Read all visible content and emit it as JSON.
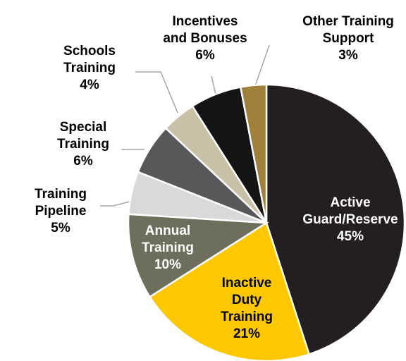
{
  "chart_data": {
    "type": "pie",
    "categories": [
      "Active\nGuard/Reserve",
      "Inactive\nDuty\nTraining",
      "Annual\nTraining",
      "Training\nPipeline",
      "Special\nTraining",
      "Schools\nTraining",
      "Incentives\nand Bonuses",
      "Other Training\nSupport"
    ],
    "values": [
      45,
      21,
      10,
      5,
      6,
      4,
      6,
      3
    ],
    "value_labels": [
      "45%",
      "21%",
      "10%",
      "5%",
      "6%",
      "4%",
      "6%",
      "3%"
    ],
    "colors": [
      "#231f20",
      "#fdc800",
      "#6d6e5c",
      "#d9d9d9",
      "#58585a",
      "#c9c0a8",
      "#141414",
      "#a0803a"
    ]
  }
}
